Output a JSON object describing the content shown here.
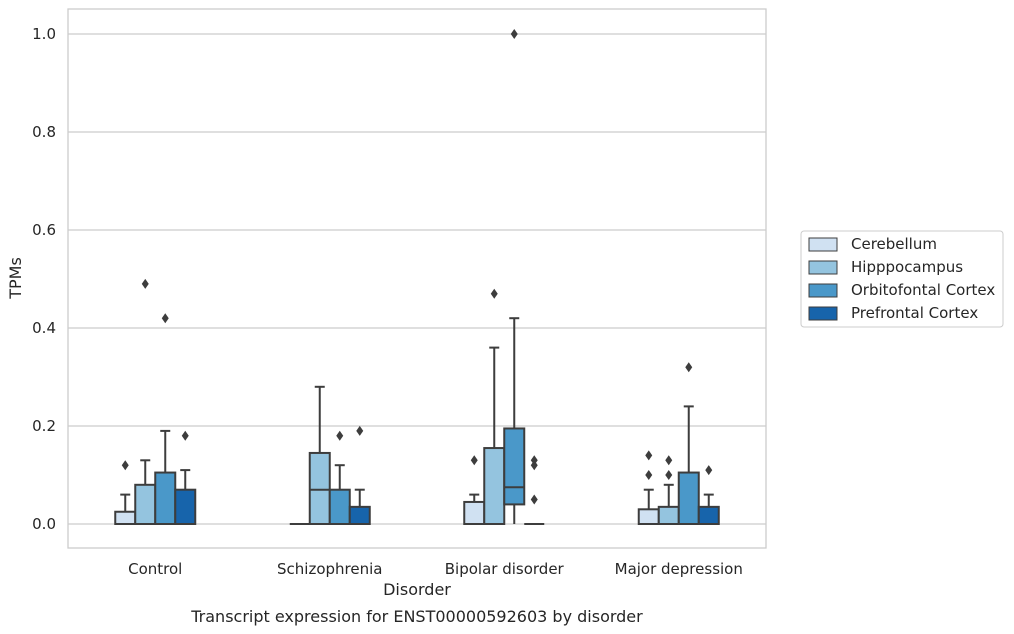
{
  "chart_data": {
    "type": "box",
    "xlabel": "Disorder",
    "ylabel": "TPMs",
    "caption": "Transcript expression for ENST00000592603 by disorder",
    "ylim": [
      -0.048,
      1.05
    ],
    "yticks": [
      "0.0",
      "0.2",
      "0.4",
      "0.6",
      "0.8",
      "1.0"
    ],
    "grid": "horizontal",
    "legend_position": "right",
    "categories": [
      "Control",
      "Schizophrenia",
      "Bipolar disorder",
      "Major depression"
    ],
    "series": [
      {
        "name": "Cerebellum",
        "color": "#d0e1f2",
        "boxes": [
          {
            "whislo": 0.0,
            "q1": 0.0,
            "med": 0.0,
            "q3": 0.025,
            "whishi": 0.06,
            "fliers": [
              0.12
            ]
          },
          {
            "whislo": 0.0,
            "q1": 0.0,
            "med": 0.0,
            "q3": 0.0,
            "whishi": 0.0,
            "fliers": []
          },
          {
            "whislo": 0.0,
            "q1": 0.0,
            "med": 0.0,
            "q3": 0.045,
            "whishi": 0.06,
            "fliers": [
              0.13
            ]
          },
          {
            "whislo": 0.0,
            "q1": 0.0,
            "med": 0.0,
            "q3": 0.03,
            "whishi": 0.07,
            "fliers": [
              0.1,
              0.14
            ]
          }
        ]
      },
      {
        "name": "Hipppocampus",
        "color": "#94c4df",
        "boxes": [
          {
            "whislo": 0.0,
            "q1": 0.0,
            "med": 0.0,
            "q3": 0.08,
            "whishi": 0.13,
            "fliers": [
              0.49
            ]
          },
          {
            "whislo": 0.0,
            "q1": 0.0,
            "med": 0.07,
            "q3": 0.145,
            "whishi": 0.28,
            "fliers": []
          },
          {
            "whislo": 0.0,
            "q1": 0.0,
            "med": 0.0,
            "q3": 0.155,
            "whishi": 0.36,
            "fliers": [
              0.47
            ]
          },
          {
            "whislo": 0.0,
            "q1": 0.0,
            "med": 0.0,
            "q3": 0.035,
            "whishi": 0.08,
            "fliers": [
              0.1,
              0.13
            ]
          }
        ]
      },
      {
        "name": "Orbitofontal Cortex",
        "color": "#4a98c9",
        "boxes": [
          {
            "whislo": 0.0,
            "q1": 0.0,
            "med": 0.0,
            "q3": 0.105,
            "whishi": 0.19,
            "fliers": [
              0.42
            ]
          },
          {
            "whislo": 0.0,
            "q1": 0.0,
            "med": 0.0,
            "q3": 0.07,
            "whishi": 0.12,
            "fliers": [
              0.18
            ]
          },
          {
            "whislo": 0.0,
            "q1": 0.04,
            "med": 0.075,
            "q3": 0.195,
            "whishi": 0.42,
            "fliers": [
              1.0
            ]
          },
          {
            "whislo": 0.0,
            "q1": 0.0,
            "med": 0.0,
            "q3": 0.105,
            "whishi": 0.24,
            "fliers": [
              0.32
            ]
          }
        ]
      },
      {
        "name": "Prefrontal Cortex",
        "color": "#1764ab",
        "boxes": [
          {
            "whislo": 0.0,
            "q1": 0.0,
            "med": 0.0,
            "q3": 0.07,
            "whishi": 0.11,
            "fliers": [
              0.18
            ]
          },
          {
            "whislo": 0.0,
            "q1": 0.0,
            "med": 0.0,
            "q3": 0.035,
            "whishi": 0.07,
            "fliers": [
              0.19
            ]
          },
          {
            "whislo": 0.0,
            "q1": 0.0,
            "med": 0.0,
            "q3": 0.0,
            "whishi": 0.0,
            "fliers": [
              0.05,
              0.12,
              0.13
            ]
          },
          {
            "whislo": 0.0,
            "q1": 0.0,
            "med": 0.0,
            "q3": 0.035,
            "whishi": 0.06,
            "fliers": [
              0.11
            ]
          }
        ]
      }
    ]
  }
}
